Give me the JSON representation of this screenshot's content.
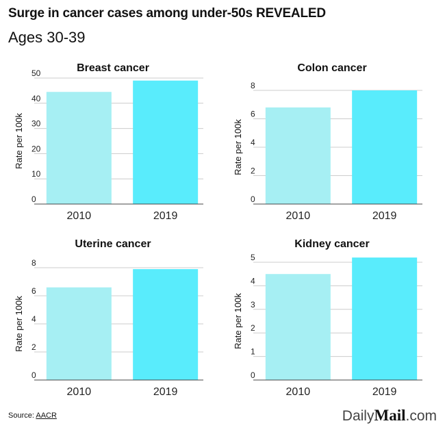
{
  "header": {
    "title": "Surge in cancer cases among under-50s REVEALED",
    "subtitle": "Ages 30-39"
  },
  "footer": {
    "source_prefix": "Source: ",
    "source_link": "AACR",
    "logo_part1": "Daily",
    "logo_part2": "Mail",
    "logo_part3": ".com"
  },
  "colors": {
    "bar_2010": "#a6eff3",
    "bar_2019": "#59ecfc",
    "grid": "#cccccc",
    "axis": "#444444"
  },
  "chart_data": [
    {
      "type": "bar",
      "title": "Breast cancer",
      "ylabel": "Rate per 100k",
      "categories": [
        "2010",
        "2019"
      ],
      "values": [
        44.5,
        49
      ],
      "ylim": [
        0,
        50
      ],
      "yticks": [
        "0",
        "10",
        "20",
        "30",
        "40",
        "50"
      ],
      "grid": true
    },
    {
      "type": "bar",
      "title": "Colon cancer",
      "ylabel": "Rate per 100k",
      "categories": [
        "2010",
        "2019"
      ],
      "values": [
        6.8,
        8
      ],
      "ylim": [
        0,
        8
      ],
      "yticks": [
        "0",
        "2",
        "4",
        "6",
        "8"
      ],
      "grid": true
    },
    {
      "type": "bar",
      "title": "Uterine cancer",
      "ylabel": "Rate per 100k",
      "categories": [
        "2010",
        "2019"
      ],
      "values": [
        6.6,
        7.9
      ],
      "ylim": [
        0,
        8
      ],
      "yticks": [
        "0",
        "2",
        "4",
        "6",
        "8"
      ],
      "grid": true
    },
    {
      "type": "bar",
      "title": "Kidney cancer",
      "ylabel": "Rate per 100k",
      "categories": [
        "2010",
        "2019"
      ],
      "values": [
        4.5,
        5.2
      ],
      "ylim": [
        0,
        5
      ],
      "yticks": [
        "0",
        "1",
        "2",
        "3",
        "4",
        "5"
      ],
      "grid": true
    }
  ]
}
